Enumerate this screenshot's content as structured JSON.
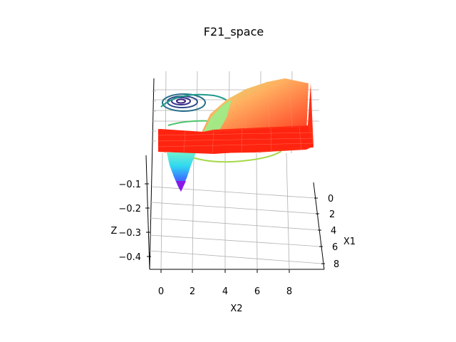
{
  "chart_data": {
    "type": "surface3d",
    "title": "F21_space",
    "xlabel": "X1",
    "ylabel": "X2",
    "zlabel": "Z",
    "x_ticks": [
      "0",
      "2",
      "4",
      "6",
      "8"
    ],
    "y_ticks": [
      "0",
      "2",
      "4",
      "6",
      "8"
    ],
    "z_ticks": [
      "−0.1",
      "−0.2",
      "−0.3",
      "−0.4"
    ],
    "xlim": [
      0,
      10
    ],
    "ylim": [
      0,
      10
    ],
    "zlim": [
      -0.45,
      0
    ],
    "colormap": "rainbow",
    "contour_projection": true,
    "grid": true
  }
}
